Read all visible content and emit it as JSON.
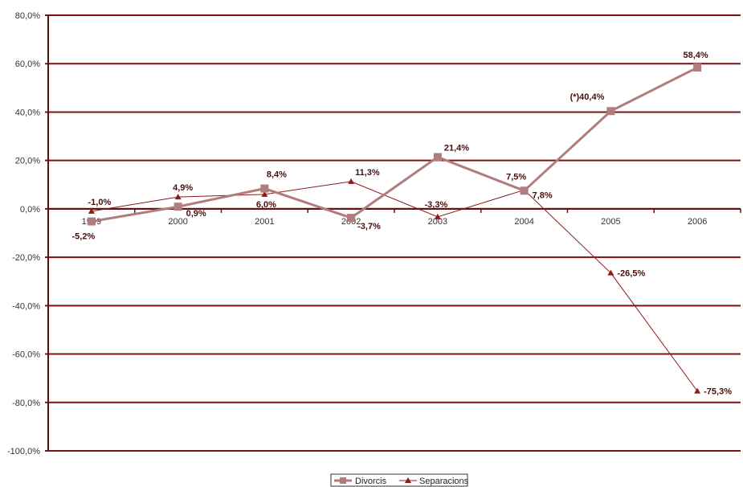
{
  "colors": {
    "divorcis": "#b07c7c",
    "separacions": "#8b1a1a",
    "gridline": "#7a1414",
    "axis": "#5a1010"
  },
  "chart_data": {
    "type": "line",
    "categories": [
      "1999",
      "2000",
      "2001",
      "2002",
      "2003",
      "2004",
      "2005",
      "2006"
    ],
    "ylim": [
      -100,
      80
    ],
    "yticks": [
      -100,
      -80,
      -60,
      -40,
      -20,
      0,
      20,
      40,
      60,
      80
    ],
    "ytick_labels": [
      "-100,0%",
      "-80,0%",
      "-60,0%",
      "-40,0%",
      "-20,0%",
      "0,0%",
      "20,0%",
      "40,0%",
      "60,0%",
      "80,0%"
    ],
    "grid": true,
    "legend_position": "bottom",
    "series": [
      {
        "name": "Divorcis",
        "marker": "square",
        "values": [
          -5.2,
          0.9,
          8.4,
          -3.7,
          21.4,
          7.5,
          40.4,
          58.4
        ],
        "labels": [
          "-5,2%",
          "0,9%",
          "8,4%",
          "-3,7%",
          "21,4%",
          "7,5%",
          "(*)40,4%",
          "58,4%"
        ]
      },
      {
        "name": "Separacions",
        "marker": "triangle",
        "values": [
          -1.0,
          4.9,
          6.0,
          11.3,
          -3.3,
          7.8,
          -26.5,
          -75.3
        ],
        "labels": [
          "-1,0%",
          "4,9%",
          "6,0%",
          "11,3%",
          "-3,3%",
          "7,8%",
          "-26,5%",
          "-75,3%"
        ]
      }
    ]
  }
}
